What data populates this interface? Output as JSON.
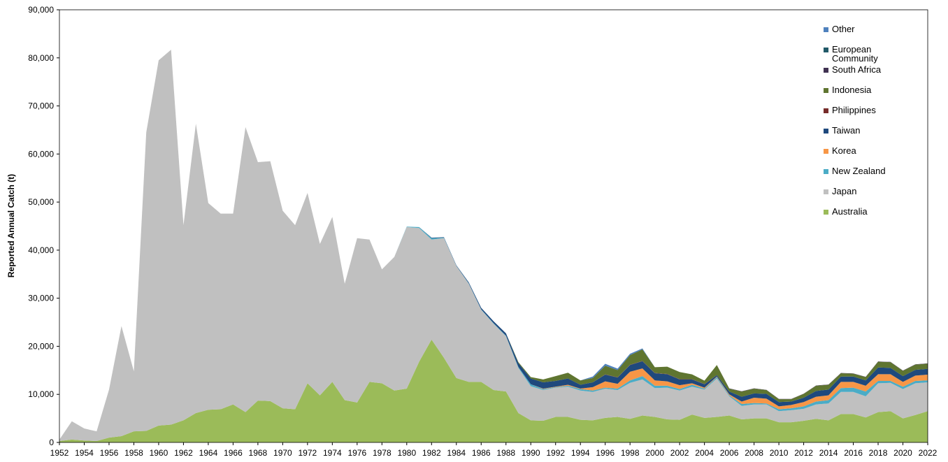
{
  "chart_data": {
    "type": "stacked-area",
    "y_label": "Reported Annual Catch (t)",
    "x": [
      1952,
      1953,
      1954,
      1955,
      1956,
      1957,
      1958,
      1959,
      1960,
      1961,
      1962,
      1963,
      1964,
      1965,
      1966,
      1967,
      1968,
      1969,
      1970,
      1971,
      1972,
      1973,
      1974,
      1975,
      1976,
      1977,
      1978,
      1979,
      1980,
      1981,
      1982,
      1983,
      1984,
      1985,
      1986,
      1987,
      1988,
      1989,
      1990,
      1991,
      1992,
      1993,
      1994,
      1995,
      1996,
      1997,
      1998,
      1999,
      2000,
      2001,
      2002,
      2003,
      2004,
      2005,
      2006,
      2007,
      2008,
      2009,
      2010,
      2011,
      2012,
      2013,
      2014,
      2015,
      2016,
      2017,
      2018,
      2019,
      2020,
      2021,
      2022
    ],
    "xlim": [
      1952,
      2022
    ],
    "xticks": [
      1952,
      1954,
      1956,
      1958,
      1960,
      1962,
      1964,
      1966,
      1968,
      1970,
      1972,
      1974,
      1976,
      1978,
      1980,
      1982,
      1984,
      1986,
      1988,
      1990,
      1992,
      1994,
      1996,
      1998,
      2000,
      2002,
      2004,
      2006,
      2008,
      2010,
      2012,
      2014,
      2016,
      2018,
      2020,
      2022
    ],
    "ylim": [
      0,
      90000
    ],
    "yticks": [
      0,
      {
        "value": 10000,
        "label": "10,000"
      },
      {
        "value": 20000,
        "label": "20,000"
      },
      {
        "value": 30000,
        "label": "30,000"
      },
      {
        "value": 40000,
        "label": "40,000"
      },
      {
        "value": 50000,
        "label": "50,000"
      },
      {
        "value": 60000,
        "label": "60,000"
      },
      {
        "value": 70000,
        "label": "70,000"
      },
      {
        "value": 80000,
        "label": "80,000"
      },
      {
        "value": 90000,
        "label": "90,000"
      }
    ],
    "legend_position": "upper right",
    "series": [
      {
        "name": "Australia",
        "color": "#9bbb59",
        "values": [
          300,
          600,
          400,
          300,
          1000,
          1300,
          2300,
          2400,
          3500,
          3700,
          4600,
          6100,
          6800,
          6900,
          7900,
          6300,
          8700,
          8600,
          7100,
          6900,
          12300,
          9800,
          12600,
          8800,
          8300,
          12600,
          12300,
          10800,
          11200,
          16800,
          21400,
          17600,
          13400,
          12600,
          12600,
          10900,
          10600,
          6100,
          4600,
          4500,
          5300,
          5300,
          4700,
          4600,
          5100,
          5300,
          4900,
          5600,
          5300,
          4800,
          4700,
          5800,
          5100,
          5300,
          5600,
          4800,
          5000,
          5000,
          4200,
          4200,
          4500,
          4900,
          4600,
          5900,
          5900,
          5200,
          6300,
          6500,
          5000,
          5700,
          6500
        ]
      },
      {
        "name": "Japan",
        "color": "#c0c0c0",
        "values": [
          300,
          3800,
          2500,
          2000,
          10000,
          22900,
          12500,
          62100,
          76000,
          78000,
          40600,
          60200,
          43000,
          40700,
          39700,
          59300,
          49600,
          49900,
          41100,
          38300,
          39600,
          31500,
          34300,
          24200,
          34200,
          29600,
          23700,
          27800,
          33600,
          27800,
          20800,
          24900,
          23300,
          20400,
          15000,
          13800,
          11500,
          9400,
          7100,
          6400,
          6100,
          6300,
          6100,
          5900,
          6100,
          5600,
          7500,
          7500,
          6000,
          6600,
          6100,
          5800,
          5900,
          8000,
          4000,
          2800,
          2900,
          2900,
          2300,
          2500,
          2500,
          3000,
          3500,
          4600,
          4600,
          4400,
          6000,
          5900,
          6100,
          6600,
          6000
        ]
      },
      {
        "name": "New Zealand",
        "color": "#4bacc6",
        "values": [
          0,
          0,
          0,
          0,
          0,
          0,
          0,
          0,
          0,
          0,
          0,
          0,
          0,
          0,
          0,
          0,
          0,
          0,
          0,
          0,
          0,
          0,
          0,
          0,
          0,
          0,
          0,
          0,
          100,
          200,
          300,
          100,
          50,
          100,
          100,
          100,
          100,
          200,
          400,
          200,
          100,
          200,
          300,
          300,
          200,
          300,
          500,
          700,
          500,
          400,
          300,
          400,
          200,
          300,
          200,
          400,
          300,
          200,
          400,
          400,
          500,
          600,
          700,
          800,
          900,
          1000,
          500,
          400,
          500,
          500,
          400
        ]
      },
      {
        "name": "Korea",
        "color": "#f79646",
        "values": [
          0,
          0,
          0,
          0,
          0,
          0,
          0,
          0,
          0,
          0,
          0,
          0,
          0,
          0,
          0,
          0,
          0,
          0,
          0,
          0,
          0,
          0,
          0,
          0,
          0,
          0,
          0,
          0,
          0,
          0,
          0,
          0,
          0,
          0,
          0,
          0,
          0,
          0,
          0,
          100,
          100,
          200,
          100,
          700,
          1300,
          1000,
          1800,
          1600,
          1100,
          900,
          800,
          300,
          200,
          100,
          200,
          500,
          1100,
          1000,
          600,
          700,
          900,
          1000,
          1000,
          1300,
          1200,
          1200,
          1400,
          1400,
          1000,
          1100,
          1200
        ]
      },
      {
        "name": "Taiwan",
        "color": "#1f497d",
        "values": [
          0,
          0,
          0,
          0,
          0,
          0,
          0,
          0,
          0,
          0,
          0,
          0,
          0,
          0,
          0,
          0,
          0,
          0,
          0,
          0,
          0,
          0,
          0,
          0,
          0,
          0,
          0,
          0,
          0,
          0,
          100,
          100,
          100,
          200,
          300,
          400,
          500,
          800,
          1200,
          1300,
          1200,
          1300,
          800,
          1000,
          1400,
          1300,
          1400,
          1500,
          1500,
          1500,
          1200,
          800,
          700,
          300,
          600,
          1000,
          900,
          1000,
          900,
          700,
          900,
          1200,
          1200,
          1100,
          1100,
          1100,
          1400,
          1300,
          1200,
          1200,
          1200
        ]
      },
      {
        "name": "Philippines",
        "color": "#772c2a",
        "values": [
          0,
          0,
          0,
          0,
          0,
          0,
          0,
          0,
          0,
          0,
          0,
          0,
          0,
          0,
          0,
          0,
          0,
          0,
          0,
          0,
          0,
          0,
          0,
          0,
          0,
          0,
          0,
          0,
          0,
          0,
          0,
          0,
          0,
          0,
          0,
          0,
          0,
          0,
          0,
          0,
          0,
          0,
          0,
          0,
          50,
          50,
          50,
          50,
          50,
          50,
          50,
          50,
          50,
          0,
          0,
          0,
          0,
          0,
          0,
          0,
          0,
          0,
          0,
          0,
          0,
          0,
          0,
          0,
          0,
          0,
          0
        ]
      },
      {
        "name": "Indonesia",
        "color": "#5f7530",
        "values": [
          0,
          0,
          0,
          0,
          0,
          0,
          0,
          0,
          0,
          0,
          0,
          0,
          0,
          0,
          0,
          0,
          0,
          0,
          0,
          0,
          0,
          0,
          0,
          0,
          0,
          0,
          0,
          0,
          0,
          0,
          0,
          0,
          0,
          0,
          0,
          0,
          0,
          200,
          300,
          600,
          1000,
          1200,
          900,
          900,
          1800,
          1500,
          2000,
          2400,
          1200,
          1500,
          1500,
          1000,
          700,
          2100,
          600,
          1100,
          1000,
          800,
          600,
          500,
          800,
          1100,
          1000,
          700,
          600,
          700,
          1200,
          1200,
          1100,
          1100,
          1100
        ]
      },
      {
        "name": "South Africa",
        "color": "#403151",
        "values": [
          0,
          0,
          0,
          0,
          0,
          0,
          0,
          0,
          0,
          0,
          0,
          0,
          0,
          0,
          0,
          0,
          0,
          0,
          0,
          0,
          0,
          0,
          0,
          0,
          0,
          0,
          0,
          0,
          0,
          0,
          0,
          0,
          0,
          0,
          0,
          0,
          0,
          0,
          0,
          0,
          0,
          0,
          0,
          0,
          0,
          0,
          0,
          0,
          0,
          0,
          0,
          0,
          0,
          0,
          50,
          50,
          50,
          50,
          50,
          50,
          50,
          50,
          50,
          50,
          50,
          50,
          50,
          50,
          50,
          50,
          50
        ]
      },
      {
        "name": "European Community",
        "color": "#215968",
        "values": [
          0,
          0,
          0,
          0,
          0,
          0,
          0,
          0,
          0,
          0,
          0,
          0,
          0,
          0,
          0,
          0,
          0,
          0,
          0,
          0,
          0,
          0,
          0,
          0,
          0,
          0,
          0,
          0,
          0,
          0,
          0,
          0,
          0,
          0,
          0,
          0,
          0,
          0,
          0,
          0,
          0,
          0,
          0,
          0,
          0,
          0,
          0,
          0,
          0,
          0,
          0,
          0,
          0,
          0,
          0,
          0,
          0,
          0,
          0,
          0,
          0,
          0,
          0,
          0,
          0,
          0,
          0,
          0,
          0,
          0,
          0
        ]
      },
      {
        "name": "Other",
        "color": "#4f81bd",
        "values": [
          0,
          0,
          0,
          0,
          0,
          0,
          0,
          0,
          0,
          0,
          0,
          0,
          0,
          0,
          0,
          0,
          0,
          0,
          0,
          0,
          0,
          0,
          0,
          0,
          0,
          0,
          0,
          0,
          0,
          0,
          0,
          0,
          0,
          0,
          0,
          0,
          0,
          0,
          0,
          0,
          0,
          0,
          0,
          300,
          400,
          300,
          300,
          200,
          0,
          0,
          0,
          0,
          0,
          0,
          0,
          0,
          0,
          0,
          0,
          0,
          0,
          0,
          0,
          0,
          0,
          0,
          0,
          0,
          0,
          0,
          0
        ]
      }
    ]
  }
}
